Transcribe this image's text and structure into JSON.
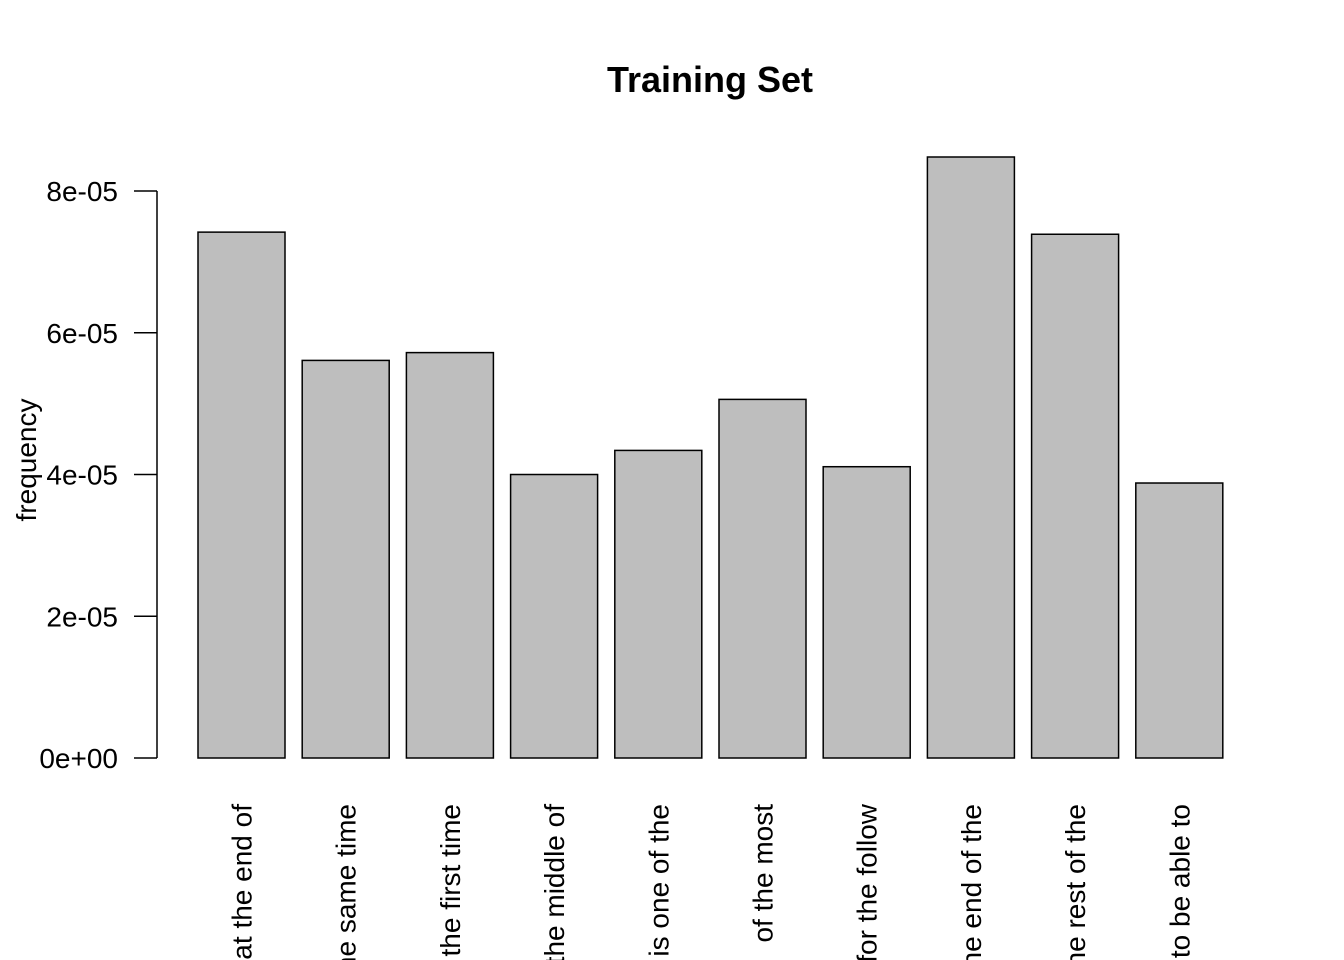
{
  "chart_data": {
    "type": "bar",
    "title": "Training Set",
    "xlabel": "",
    "ylabel": "frequency",
    "categories": [
      "at the end of",
      "the same time",
      "the first time",
      "the middle of",
      "is one of the",
      "of the most",
      "for the follow",
      "the end of the",
      "the rest of the",
      "to be able to"
    ],
    "values": [
      7.42e-05,
      5.61e-05,
      5.72e-05,
      4e-05,
      4.34e-05,
      5.06e-05,
      4.11e-05,
      8.48e-05,
      7.39e-05,
      3.88e-05
    ],
    "ylim": [
      0,
      8.48e-05
    ],
    "yticks": [
      0,
      2e-05,
      4e-05,
      6e-05,
      8e-05
    ],
    "ytick_labels": [
      "0e+00",
      "2e-05",
      "4e-05",
      "6e-05",
      "8e-05"
    ],
    "bar_color": "#bebebe",
    "edge_color": "#000000",
    "grid": false,
    "legend": "none"
  }
}
